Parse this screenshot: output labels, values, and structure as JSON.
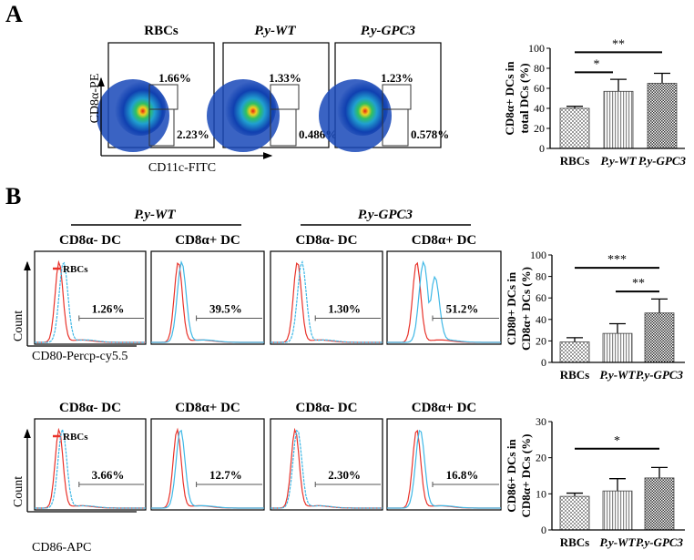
{
  "panel_labels": {
    "a": "A",
    "b": "B"
  },
  "panel_a": {
    "columns": [
      "RBCs",
      "P.y-WT",
      "P.y-GPC3"
    ],
    "y_axis": "CD8α-PE",
    "x_axis": "CD11c-FITC",
    "plots": [
      {
        "upper_gate": "1.66%",
        "lower_gate": "2.23%"
      },
      {
        "upper_gate": "1.33%",
        "lower_gate": "0.486%"
      },
      {
        "upper_gate": "1.23%",
        "lower_gate": "0.578%"
      }
    ]
  },
  "panel_b": {
    "groups": [
      "P.y-WT",
      "P.y-GPC3"
    ],
    "legend": "RBCs",
    "colors": {
      "control": "#e8322a",
      "treated": "#3fb8e6"
    },
    "count_label": "Count",
    "rows": [
      {
        "x_axis": "CD80-Percp-cy5.5",
        "titles": [
          "CD8α- DC",
          "CD8α+ DC",
          "CD8α- DC",
          "CD8α+ DC"
        ],
        "percents": [
          "1.26%",
          "39.5%",
          "1.30%",
          "51.2%"
        ]
      },
      {
        "x_axis": "CD86-APC",
        "titles": [
          "CD8α- DC",
          "CD8α+ DC",
          "CD8α- DC",
          "CD8α+ DC"
        ],
        "percents": [
          "3.66%",
          "12.7%",
          "2.30%",
          "16.8%"
        ]
      }
    ]
  },
  "chart_data": [
    {
      "type": "bar",
      "ylabel": "CD8α+ DCs in total DCs (%)",
      "ylabel_lines": [
        "CD8α+ DCs in",
        "total DCs (%)"
      ],
      "categories": [
        "RBCs",
        "P.y-WT",
        "P.y-GPC3"
      ],
      "values": [
        40,
        57,
        65
      ],
      "errors": [
        2,
        12,
        10
      ],
      "ylim": [
        0,
        100
      ],
      "yticks": [
        "0",
        "20",
        "40",
        "60",
        "80",
        "100"
      ],
      "comparisons": [
        {
          "from": 0,
          "to": 1,
          "label": "*",
          "level": 76
        },
        {
          "from": 0,
          "to": 2,
          "label": "**",
          "level": 96
        }
      ]
    },
    {
      "type": "bar",
      "ylabel": "CD80+ DCs in CD8α+ DCs (%)",
      "ylabel_lines": [
        "CD80+ DCs in",
        "CD8α+ DCs (%)"
      ],
      "categories": [
        "RBCs",
        "P.y-WT",
        "P.y-GPC3"
      ],
      "values": [
        19,
        27,
        46
      ],
      "errors": [
        4,
        9,
        13
      ],
      "ylim": [
        0,
        100
      ],
      "yticks": [
        "0",
        "20",
        "40",
        "60",
        "80",
        "100"
      ],
      "comparisons": [
        {
          "from": 0,
          "to": 2,
          "label": "***",
          "level": 88
        },
        {
          "from": 1,
          "to": 2,
          "label": "**",
          "level": 66
        }
      ]
    },
    {
      "type": "bar",
      "ylabel": "CD86+ DCs in CD8α+ DCs (%)",
      "ylabel_lines": [
        "CD86+ DCs in",
        "CD8α+ DCs (%)"
      ],
      "categories": [
        "RBCs",
        "P.y-WT",
        "P.y-GPC3"
      ],
      "values": [
        9.3,
        10.8,
        14.4
      ],
      "errors": [
        0.9,
        3.4,
        2.9
      ],
      "ylim": [
        0,
        30
      ],
      "yticks": [
        "0",
        "10",
        "20",
        "30"
      ],
      "comparisons": [
        {
          "from": 0,
          "to": 2,
          "label": "*",
          "level": 22.5
        }
      ]
    }
  ]
}
